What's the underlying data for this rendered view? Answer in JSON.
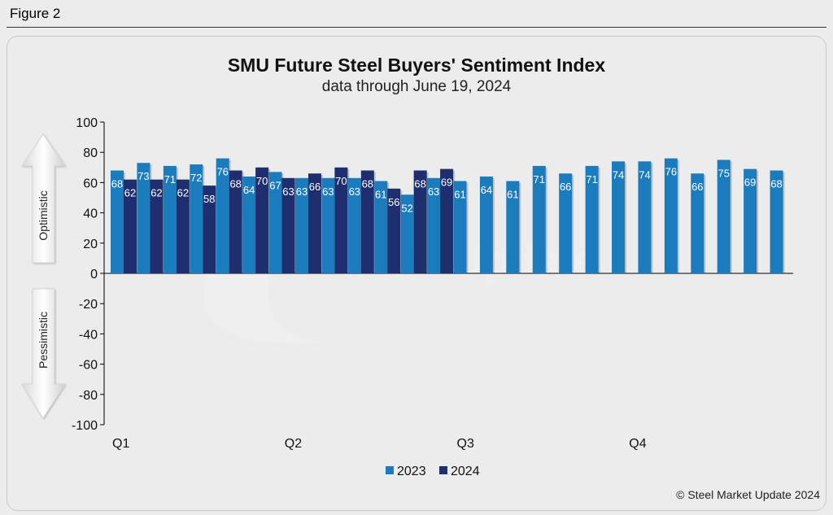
{
  "figure_label": "Figure 2",
  "copyright": "© Steel Market Update 2024",
  "watermark": "Steel Market Update",
  "arrows": {
    "up_label": "Optimistic",
    "down_label": "Pessimistic"
  },
  "colors": {
    "series_2023": "#1a7bbd",
    "series_2024": "#1f2e6e",
    "background": "#ececec"
  },
  "chart_data": {
    "type": "bar",
    "title": "SMU Future Steel Buyers' Sentiment Index",
    "subtitle": "data through June 19, 2024",
    "xlabel": "",
    "ylabel": "",
    "ylim": [
      -100,
      100
    ],
    "yticks": [
      100,
      80,
      60,
      40,
      20,
      0,
      -20,
      -40,
      -60,
      -80,
      -100
    ],
    "quarter_labels": [
      "Q1",
      "Q2",
      "Q3",
      "Q4"
    ],
    "grid": false,
    "legend": "bottom",
    "series": [
      {
        "name": "2023",
        "values": [
          68,
          73,
          71,
          72,
          76,
          64,
          67,
          63,
          63,
          63,
          61,
          52,
          63,
          61,
          64,
          61,
          71,
          66,
          71,
          74,
          74,
          76,
          66,
          75,
          69,
          68
        ]
      },
      {
        "name": "2024",
        "values": [
          62,
          62,
          62,
          58,
          68,
          70,
          63,
          66,
          70,
          68,
          56,
          68,
          69
        ]
      }
    ]
  }
}
